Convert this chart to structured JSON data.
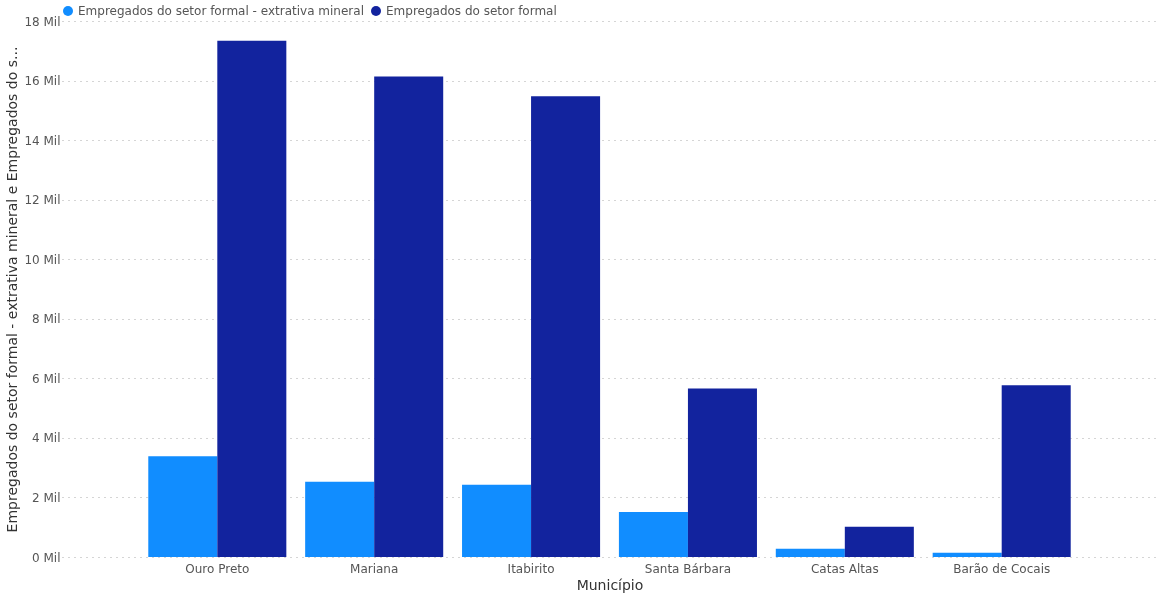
{
  "chart_data": {
    "type": "bar",
    "xlabel": "Município",
    "ylabel": "Empregados do setor formal - extrativa mineral e Empregados do s...",
    "categories": [
      "Ouro Preto",
      "Mariana",
      "Itabirito",
      "Santa Bárbara",
      "Catas Altas",
      "Barão de Cocais"
    ],
    "series": [
      {
        "name": "Empregados do setor formal - extrativa mineral",
        "color": "#118dff",
        "values": [
          3.38,
          2.53,
          2.43,
          1.51,
          0.28,
          0.14
        ]
      },
      {
        "name": "Empregados do setor formal",
        "color": "#12239e",
        "values": [
          17.34,
          16.14,
          15.47,
          5.66,
          1.02,
          5.77
        ]
      }
    ],
    "ylim": [
      0,
      18
    ],
    "yticks": [
      {
        "value": 0,
        "label": "0 Mil"
      },
      {
        "value": 2,
        "label": "2 Mil"
      },
      {
        "value": 4,
        "label": "4 Mil"
      },
      {
        "value": 6,
        "label": "6 Mil"
      },
      {
        "value": 8,
        "label": "8 Mil"
      },
      {
        "value": 10,
        "label": "10 Mil"
      },
      {
        "value": 12,
        "label": "12 Mil"
      },
      {
        "value": 14,
        "label": "14 Mil"
      },
      {
        "value": 16,
        "label": "16 Mil"
      },
      {
        "value": 18,
        "label": "18 Mil"
      }
    ],
    "grid": "y",
    "legend": "top left"
  }
}
